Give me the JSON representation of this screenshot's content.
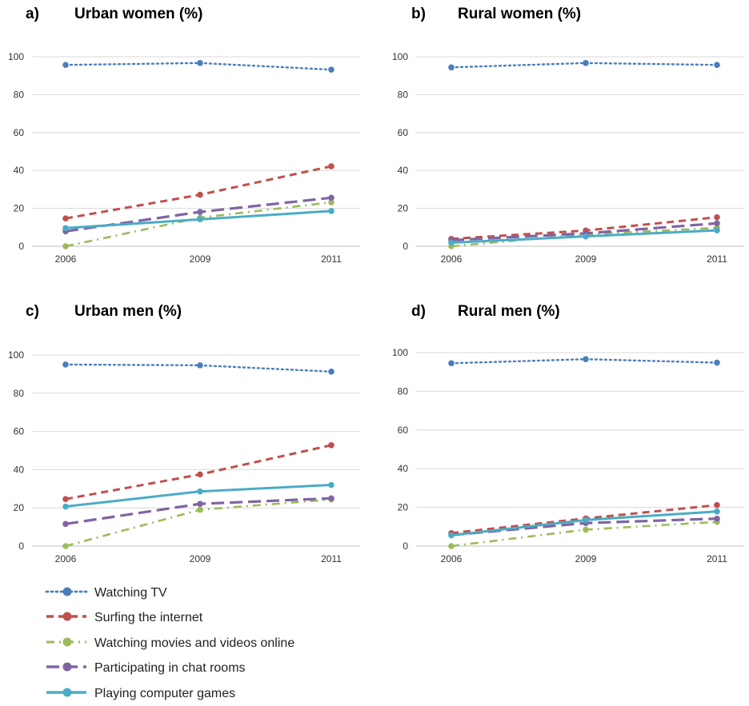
{
  "x": [
    "2006",
    "2009",
    "2011"
  ],
  "y_ticks": [
    "0",
    "20",
    "40",
    "60",
    "80",
    "100"
  ],
  "series_styles": [
    {
      "key": "tv",
      "color": "#4a7ebb",
      "dash": "dot"
    },
    {
      "key": "internet",
      "color": "#c0504d",
      "dash": "dash"
    },
    {
      "key": "movies",
      "color": "#9bbb59",
      "dash": "dashdot"
    },
    {
      "key": "chat",
      "color": "#8064a2",
      "dash": "longdash"
    },
    {
      "key": "games",
      "color": "#4bacc6",
      "dash": "solid"
    }
  ],
  "legend": [
    "Watching TV",
    "Surfing the internet",
    "Watching movies and videos online",
    "Participating in chat rooms",
    "Playing computer games"
  ],
  "chart_data": [
    {
      "type": "line",
      "letter": "a)",
      "title": "Urban women (%)",
      "x": [
        "2006",
        "2009",
        "2011"
      ],
      "ylim": [
        0,
        100
      ],
      "grid": true,
      "series": [
        {
          "name": "Watching TV",
          "values": [
            95.7,
            96.7,
            93.2
          ]
        },
        {
          "name": "Surfing the internet",
          "values": [
            14.7,
            27.2,
            42.2
          ]
        },
        {
          "name": "Watching movies and videos online",
          "values": [
            0,
            15.1,
            23.2
          ]
        },
        {
          "name": "Participating in chat rooms",
          "values": [
            7.9,
            18.1,
            25.6
          ]
        },
        {
          "name": "Playing computer games",
          "values": [
            9.6,
            14.2,
            18.6
          ]
        }
      ]
    },
    {
      "type": "line",
      "letter": "b)",
      "title": "Rural women (%)",
      "x": [
        "2006",
        "2009",
        "2011"
      ],
      "ylim": [
        0,
        100
      ],
      "grid": true,
      "series": [
        {
          "name": "Watching TV",
          "values": [
            94.4,
            96.7,
            95.7
          ]
        },
        {
          "name": "Surfing the internet",
          "values": [
            3.9,
            8.3,
            15.3
          ]
        },
        {
          "name": "Watching movies and videos online",
          "values": [
            0,
            6.3,
            9.7
          ]
        },
        {
          "name": "Participating in chat rooms",
          "values": [
            3.2,
            6.8,
            12.1
          ]
        },
        {
          "name": "Playing computer games",
          "values": [
            1.9,
            5.2,
            8.4
          ]
        }
      ]
    },
    {
      "type": "line",
      "letter": "c)",
      "title": "Urban men (%)",
      "x": [
        "2006",
        "2009",
        "2011"
      ],
      "ylim": [
        0,
        100
      ],
      "grid": true,
      "series": [
        {
          "name": "Watching TV",
          "values": [
            95,
            94.6,
            91.3
          ]
        },
        {
          "name": "Surfing the internet",
          "values": [
            24.6,
            37.5,
            52.8
          ]
        },
        {
          "name": "Watching movies and videos online",
          "values": [
            0,
            19,
            24.4
          ]
        },
        {
          "name": "Participating in chat rooms",
          "values": [
            11.6,
            22.1,
            25
          ]
        },
        {
          "name": "Playing computer games",
          "values": [
            20.7,
            28.6,
            32
          ]
        }
      ]
    },
    {
      "type": "line",
      "letter": "d)",
      "title": "Rural men (%)",
      "x": [
        "2006",
        "2009",
        "2011"
      ],
      "ylim": [
        0,
        100
      ],
      "grid": true,
      "series": [
        {
          "name": "Watching TV",
          "values": [
            94.5,
            96.6,
            94.8
          ]
        },
        {
          "name": "Surfing the internet",
          "values": [
            6.7,
            14.3,
            21.2
          ]
        },
        {
          "name": "Watching movies and videos online",
          "values": [
            0,
            8.5,
            12.5
          ]
        },
        {
          "name": "Participating in chat rooms",
          "values": [
            5.7,
            11.9,
            14.2
          ]
        },
        {
          "name": "Playing computer games",
          "values": [
            5.6,
            13.5,
            17.9
          ]
        }
      ]
    }
  ]
}
